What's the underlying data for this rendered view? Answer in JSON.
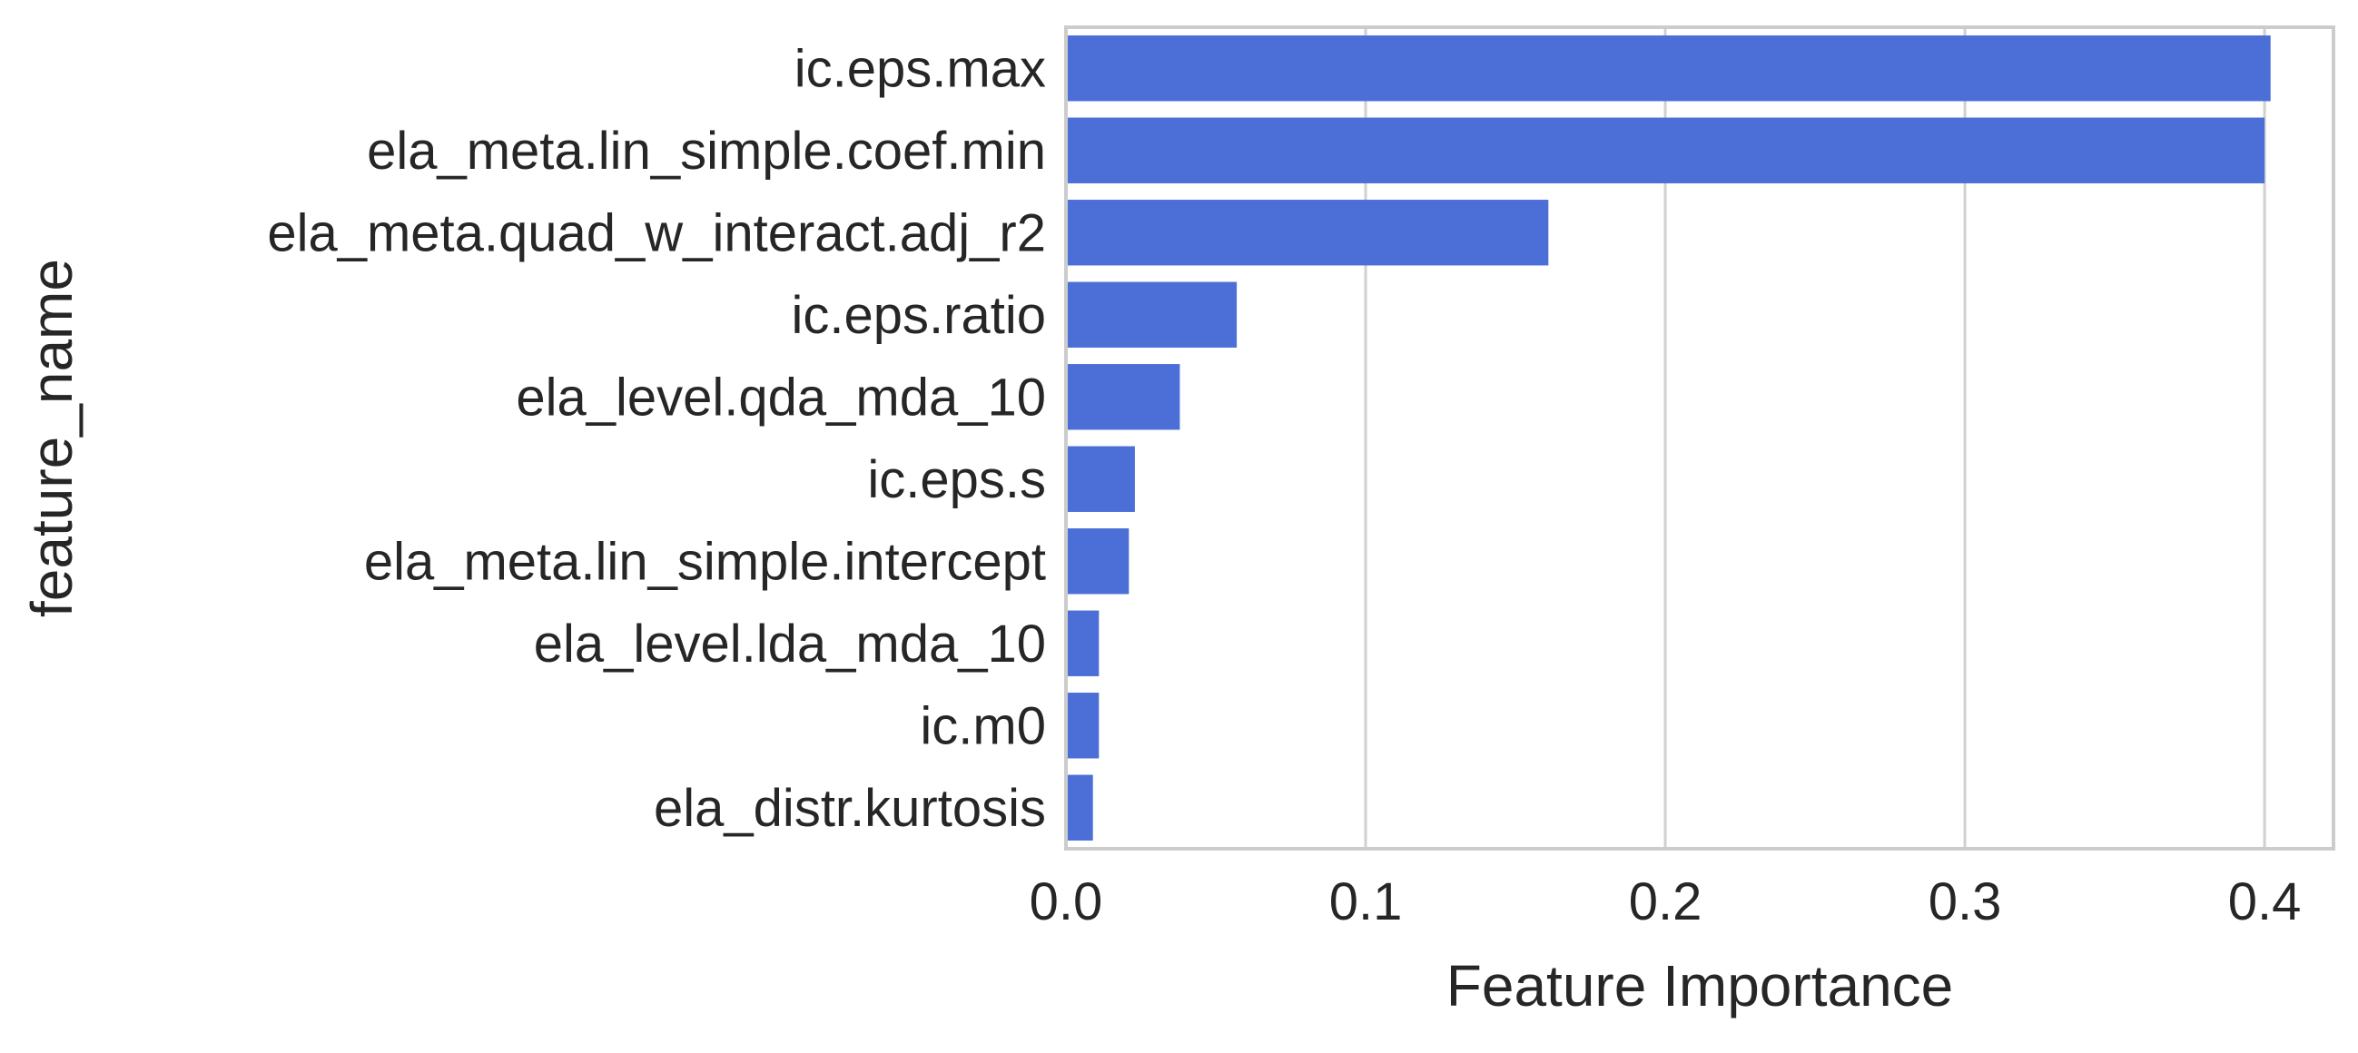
{
  "chart_data": {
    "type": "bar",
    "orientation": "horizontal",
    "categories": [
      "ic.eps.max",
      "ela_meta.lin_simple.coef.min",
      "ela_meta.quad_w_interact.adj_r2",
      "ic.eps.ratio",
      "ela_level.qda_mda_10",
      "ic.eps.s",
      "ela_meta.lin_simple.intercept",
      "ela_level.lda_mda_10",
      "ic.m0",
      "ela_distr.kurtosis"
    ],
    "values": [
      0.402,
      0.4,
      0.161,
      0.057,
      0.038,
      0.023,
      0.021,
      0.011,
      0.011,
      0.009
    ],
    "xlabel": "Feature Importance",
    "ylabel": "feature_name",
    "xlim": [
      0,
      0.423
    ],
    "xticks": [
      0.0,
      0.1,
      0.2,
      0.3,
      0.4
    ],
    "xtick_labels": [
      "0.0",
      "0.1",
      "0.2",
      "0.3",
      "0.4"
    ],
    "grid": "vertical",
    "bar_color": "#4b6fd6"
  }
}
